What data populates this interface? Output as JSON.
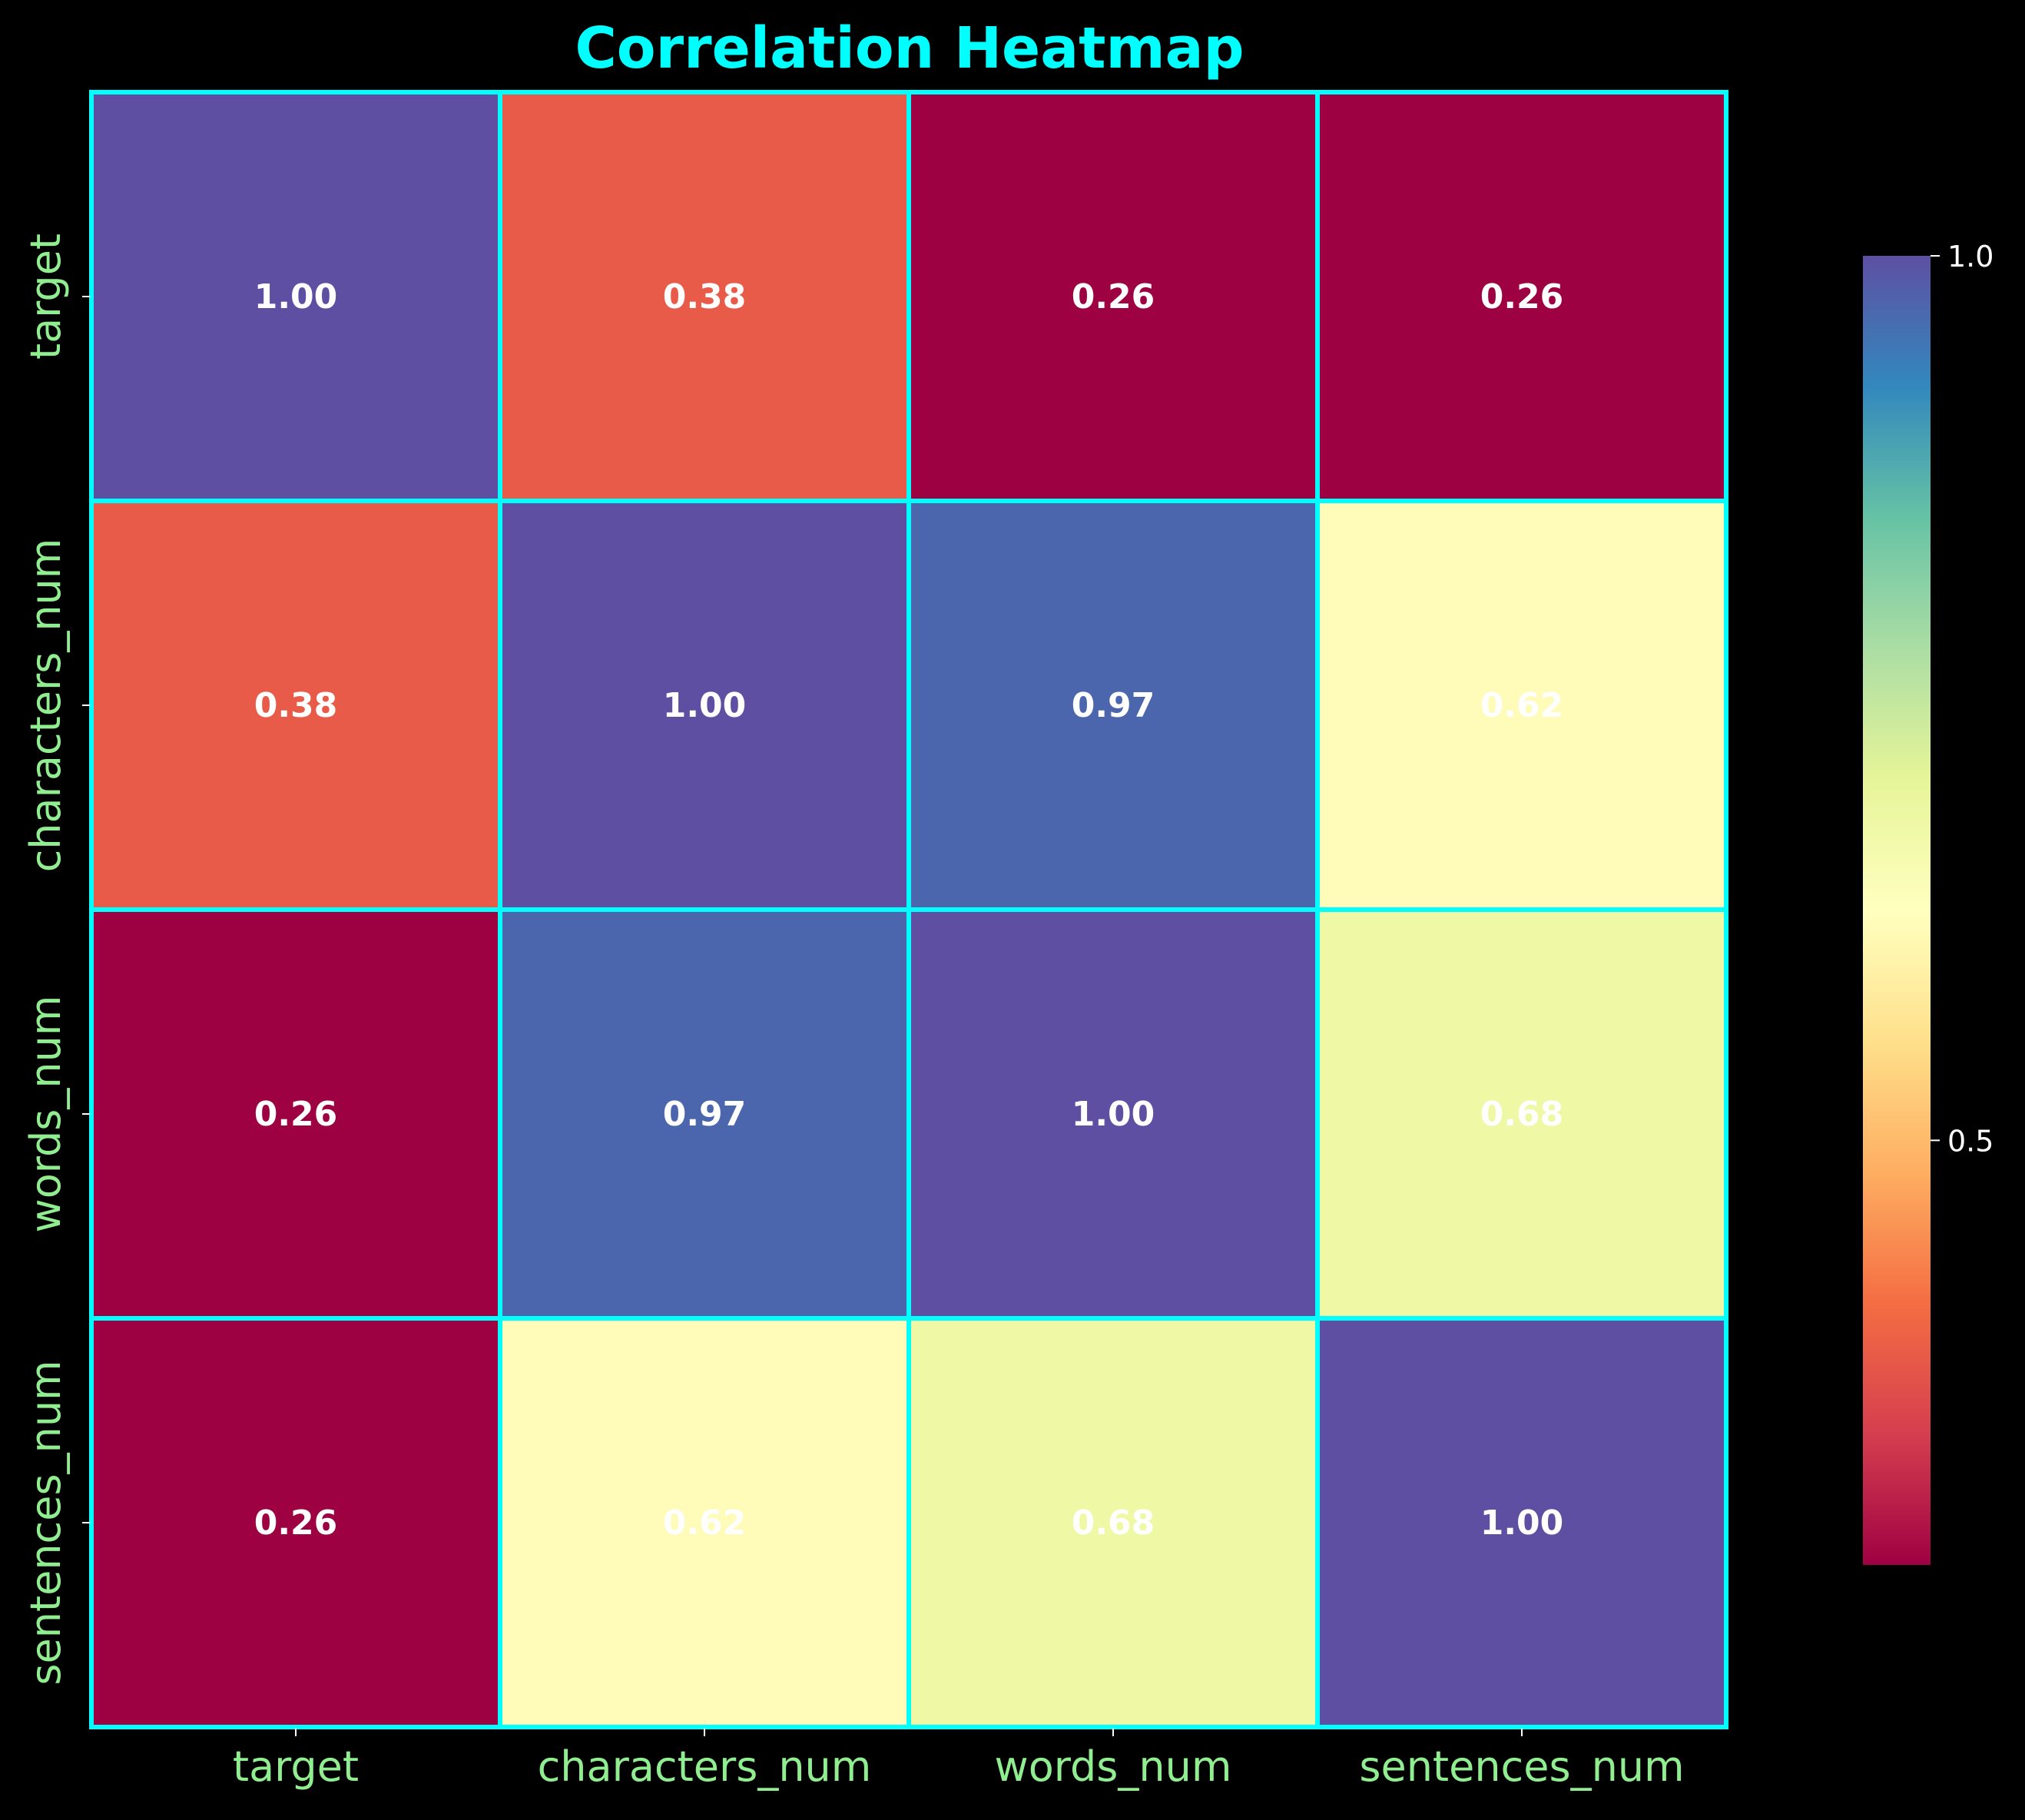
{
  "chart_data": {
    "type": "heatmap",
    "title": "Correlation Heatmap",
    "x_labels": [
      "target",
      "characters_num",
      "words_num",
      "sentences_num"
    ],
    "y_labels": [
      "target",
      "characters_num",
      "words_num",
      "sentences_num"
    ],
    "values": [
      [
        1.0,
        0.38,
        0.26,
        0.26
      ],
      [
        0.38,
        1.0,
        0.97,
        0.62
      ],
      [
        0.26,
        0.97,
        1.0,
        0.68
      ],
      [
        0.26,
        0.62,
        0.68,
        1.0
      ]
    ],
    "value_labels": [
      [
        "1.00",
        "0.38",
        "0.26",
        "0.26"
      ],
      [
        "0.38",
        "1.00",
        "0.97",
        "0.62"
      ],
      [
        "0.26",
        "0.97",
        "1.00",
        "0.68"
      ],
      [
        "0.26",
        "0.62",
        "0.68",
        "1.00"
      ]
    ],
    "colormap": "Spectral",
    "colorbar": {
      "vmin": 0.26,
      "vmax": 1.0,
      "ticks": [
        0.5,
        1.0
      ],
      "tick_labels": [
        "0.5",
        "1.0"
      ]
    },
    "colors": {
      "background": "#000000",
      "title": "#00FFFF",
      "tick_labels": "#90EE90",
      "cell_border": "#00FFFF",
      "cell_text": "#FFFFFF",
      "colorbar_tick_labels": "#FFFFFF"
    }
  }
}
